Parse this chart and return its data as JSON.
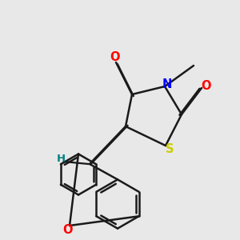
{
  "background_color": "#e8e8e8",
  "bond_color": "#1a1a1a",
  "bond_lw": 1.8,
  "N_color": "#0000ff",
  "O_color": "#ff0000",
  "S_color": "#cccc00",
  "H_color": "#008080",
  "C_color": "#1a1a1a",
  "xlim": [
    0,
    10
  ],
  "ylim": [
    0,
    10
  ]
}
